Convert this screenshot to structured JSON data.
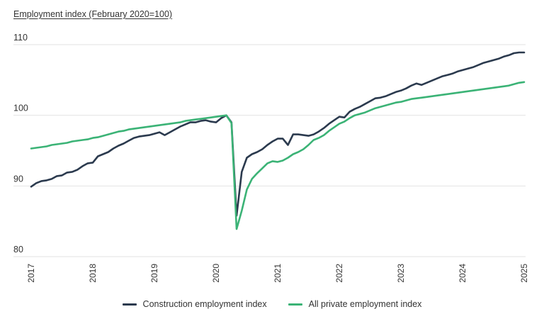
{
  "chart_data": {
    "type": "line",
    "title": "Employment index (February 2020=100)",
    "ylim": [
      80,
      110
    ],
    "xlim": [
      2017.0,
      2025.0
    ],
    "y_ticks": [
      "110",
      "100",
      "90",
      "80"
    ],
    "x_ticks": [
      "2017",
      "2018",
      "2019",
      "2020",
      "2021",
      "2022",
      "2023",
      "2024",
      "2025"
    ],
    "grid": true,
    "legend_position": "bottom",
    "series": [
      {
        "name": "Construction employment index",
        "color": "#2b3a4e",
        "x": [
          2017.0,
          2017.083,
          2017.167,
          2017.25,
          2017.333,
          2017.417,
          2017.5,
          2017.583,
          2017.667,
          2017.75,
          2017.833,
          2017.917,
          2018.0,
          2018.083,
          2018.167,
          2018.25,
          2018.333,
          2018.417,
          2018.5,
          2018.583,
          2018.667,
          2018.75,
          2018.833,
          2018.917,
          2019.0,
          2019.083,
          2019.167,
          2019.25,
          2019.333,
          2019.417,
          2019.5,
          2019.583,
          2019.667,
          2019.75,
          2019.833,
          2019.917,
          2020.0,
          2020.083,
          2020.167,
          2020.25,
          2020.333,
          2020.417,
          2020.5,
          2020.583,
          2020.667,
          2020.75,
          2020.833,
          2020.917,
          2021.0,
          2021.083,
          2021.167,
          2021.25,
          2021.333,
          2021.417,
          2021.5,
          2021.583,
          2021.667,
          2021.75,
          2021.833,
          2021.917,
          2022.0,
          2022.083,
          2022.167,
          2022.25,
          2022.333,
          2022.417,
          2022.5,
          2022.583,
          2022.667,
          2022.75,
          2022.833,
          2022.917,
          2023.0,
          2023.083,
          2023.167,
          2023.25,
          2023.333,
          2023.417,
          2023.5,
          2023.583,
          2023.667,
          2023.75,
          2023.833,
          2023.917,
          2024.0,
          2024.083,
          2024.167,
          2024.25,
          2024.333,
          2024.417,
          2024.5,
          2024.583,
          2024.667,
          2024.75,
          2024.833,
          2024.917,
          2025.0
        ],
        "values": [
          89.9,
          90.4,
          90.7,
          90.8,
          91.0,
          91.4,
          91.5,
          91.9,
          92.0,
          92.3,
          92.8,
          93.2,
          93.3,
          94.2,
          94.5,
          94.8,
          95.3,
          95.7,
          96.0,
          96.4,
          96.8,
          97.0,
          97.1,
          97.2,
          97.4,
          97.6,
          97.2,
          97.6,
          98.0,
          98.4,
          98.7,
          99.0,
          99.0,
          99.2,
          99.3,
          99.1,
          99.0,
          99.6,
          100.0,
          99.0,
          85.8,
          92.0,
          94.0,
          94.5,
          94.8,
          95.2,
          95.8,
          96.3,
          96.7,
          96.7,
          95.8,
          97.3,
          97.3,
          97.2,
          97.1,
          97.3,
          97.7,
          98.2,
          98.8,
          99.3,
          99.8,
          99.7,
          100.5,
          100.9,
          101.2,
          101.6,
          102.0,
          102.4,
          102.5,
          102.7,
          103.0,
          103.3,
          103.5,
          103.8,
          104.2,
          104.5,
          104.3,
          104.6,
          104.9,
          105.2,
          105.5,
          105.7,
          105.9,
          106.2,
          106.4,
          106.6,
          106.8,
          107.1,
          107.4,
          107.6,
          107.8,
          108.0,
          108.3,
          108.5,
          108.8,
          108.9,
          108.9
        ]
      },
      {
        "name": "All private employment index",
        "color": "#3bb376",
        "x": [
          2017.0,
          2017.083,
          2017.167,
          2017.25,
          2017.333,
          2017.417,
          2017.5,
          2017.583,
          2017.667,
          2017.75,
          2017.833,
          2017.917,
          2018.0,
          2018.083,
          2018.167,
          2018.25,
          2018.333,
          2018.417,
          2018.5,
          2018.583,
          2018.667,
          2018.75,
          2018.833,
          2018.917,
          2019.0,
          2019.083,
          2019.167,
          2019.25,
          2019.333,
          2019.417,
          2019.5,
          2019.583,
          2019.667,
          2019.75,
          2019.833,
          2019.917,
          2020.0,
          2020.083,
          2020.167,
          2020.25,
          2020.333,
          2020.417,
          2020.5,
          2020.583,
          2020.667,
          2020.75,
          2020.833,
          2020.917,
          2021.0,
          2021.083,
          2021.167,
          2021.25,
          2021.333,
          2021.417,
          2021.5,
          2021.583,
          2021.667,
          2021.75,
          2021.833,
          2021.917,
          2022.0,
          2022.083,
          2022.167,
          2022.25,
          2022.333,
          2022.417,
          2022.5,
          2022.583,
          2022.667,
          2022.75,
          2022.833,
          2022.917,
          2023.0,
          2023.083,
          2023.167,
          2023.25,
          2023.333,
          2023.417,
          2023.5,
          2023.583,
          2023.667,
          2023.75,
          2023.833,
          2023.917,
          2024.0,
          2024.083,
          2024.167,
          2024.25,
          2024.333,
          2024.417,
          2024.5,
          2024.583,
          2024.667,
          2024.75,
          2024.833,
          2024.917,
          2025.0
        ],
        "values": [
          95.3,
          95.4,
          95.5,
          95.6,
          95.8,
          95.9,
          96.0,
          96.1,
          96.3,
          96.4,
          96.5,
          96.6,
          96.8,
          96.9,
          97.1,
          97.3,
          97.5,
          97.7,
          97.8,
          98.0,
          98.1,
          98.2,
          98.3,
          98.4,
          98.5,
          98.6,
          98.7,
          98.8,
          98.9,
          99.0,
          99.2,
          99.3,
          99.4,
          99.5,
          99.6,
          99.7,
          99.8,
          99.9,
          100.0,
          98.9,
          83.9,
          86.5,
          89.5,
          91.0,
          91.8,
          92.5,
          93.2,
          93.5,
          93.4,
          93.6,
          94.0,
          94.5,
          94.8,
          95.2,
          95.8,
          96.5,
          96.8,
          97.2,
          97.8,
          98.3,
          98.8,
          99.1,
          99.6,
          100.0,
          100.2,
          100.4,
          100.7,
          101.0,
          101.2,
          101.4,
          101.6,
          101.8,
          101.9,
          102.1,
          102.3,
          102.4,
          102.5,
          102.6,
          102.7,
          102.8,
          102.9,
          103.0,
          103.1,
          103.2,
          103.3,
          103.4,
          103.5,
          103.6,
          103.7,
          103.8,
          103.9,
          104.0,
          104.1,
          104.2,
          104.4,
          104.6,
          104.7
        ]
      }
    ]
  }
}
